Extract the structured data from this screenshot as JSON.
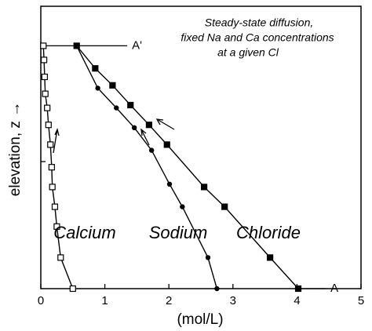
{
  "chart_data": {
    "type": "line",
    "annotation": [
      "Steady-state diffusion,",
      "fixed Na and Ca concentrations",
      "at a given Cl"
    ],
    "xlabel": "(mol/L)",
    "ylabel": "elevation, z →",
    "xlim": [
      0,
      5
    ],
    "xticks": [
      0,
      1,
      2,
      3,
      4,
      5
    ],
    "ylim": [
      0,
      1
    ],
    "yticks": [
      0.45,
      0.86
    ],
    "series": [
      {
        "name": "Calcium",
        "color": "#000000",
        "marker": "square-open",
        "x": [
          0.04,
          0.05,
          0.06,
          0.07,
          0.1,
          0.12,
          0.15,
          0.17,
          0.18,
          0.22,
          0.25,
          0.31,
          0.5
        ],
        "y": [
          0.86,
          0.81,
          0.75,
          0.69,
          0.64,
          0.58,
          0.51,
          0.43,
          0.36,
          0.29,
          0.22,
          0.11,
          0
        ]
      },
      {
        "name": "Sodium",
        "color": "#000000",
        "marker": "circle",
        "x": [
          0.56,
          0.89,
          1.18,
          1.46,
          1.73,
          2.01,
          2.21,
          2.61,
          2.75
        ],
        "y": [
          0.86,
          0.71,
          0.64,
          0.57,
          0.49,
          0.37,
          0.29,
          0.11,
          0
        ]
      },
      {
        "name": "Chloride",
        "color": "#000000",
        "marker": "square",
        "x": [
          0.56,
          0.85,
          1.12,
          1.4,
          1.69,
          1.97,
          2.55,
          2.87,
          3.58,
          4.02
        ],
        "y": [
          0.86,
          0.78,
          0.72,
          0.65,
          0.58,
          0.51,
          0.36,
          0.29,
          0.11,
          0
        ]
      }
    ],
    "reference_lines": [
      {
        "label": "A'",
        "x": [
          0,
          1.35
        ],
        "y": [
          0.86,
          0.86
        ]
      },
      {
        "label": "A",
        "x": [
          4.02,
          4.45
        ],
        "y": [
          0,
          0
        ]
      }
    ]
  }
}
